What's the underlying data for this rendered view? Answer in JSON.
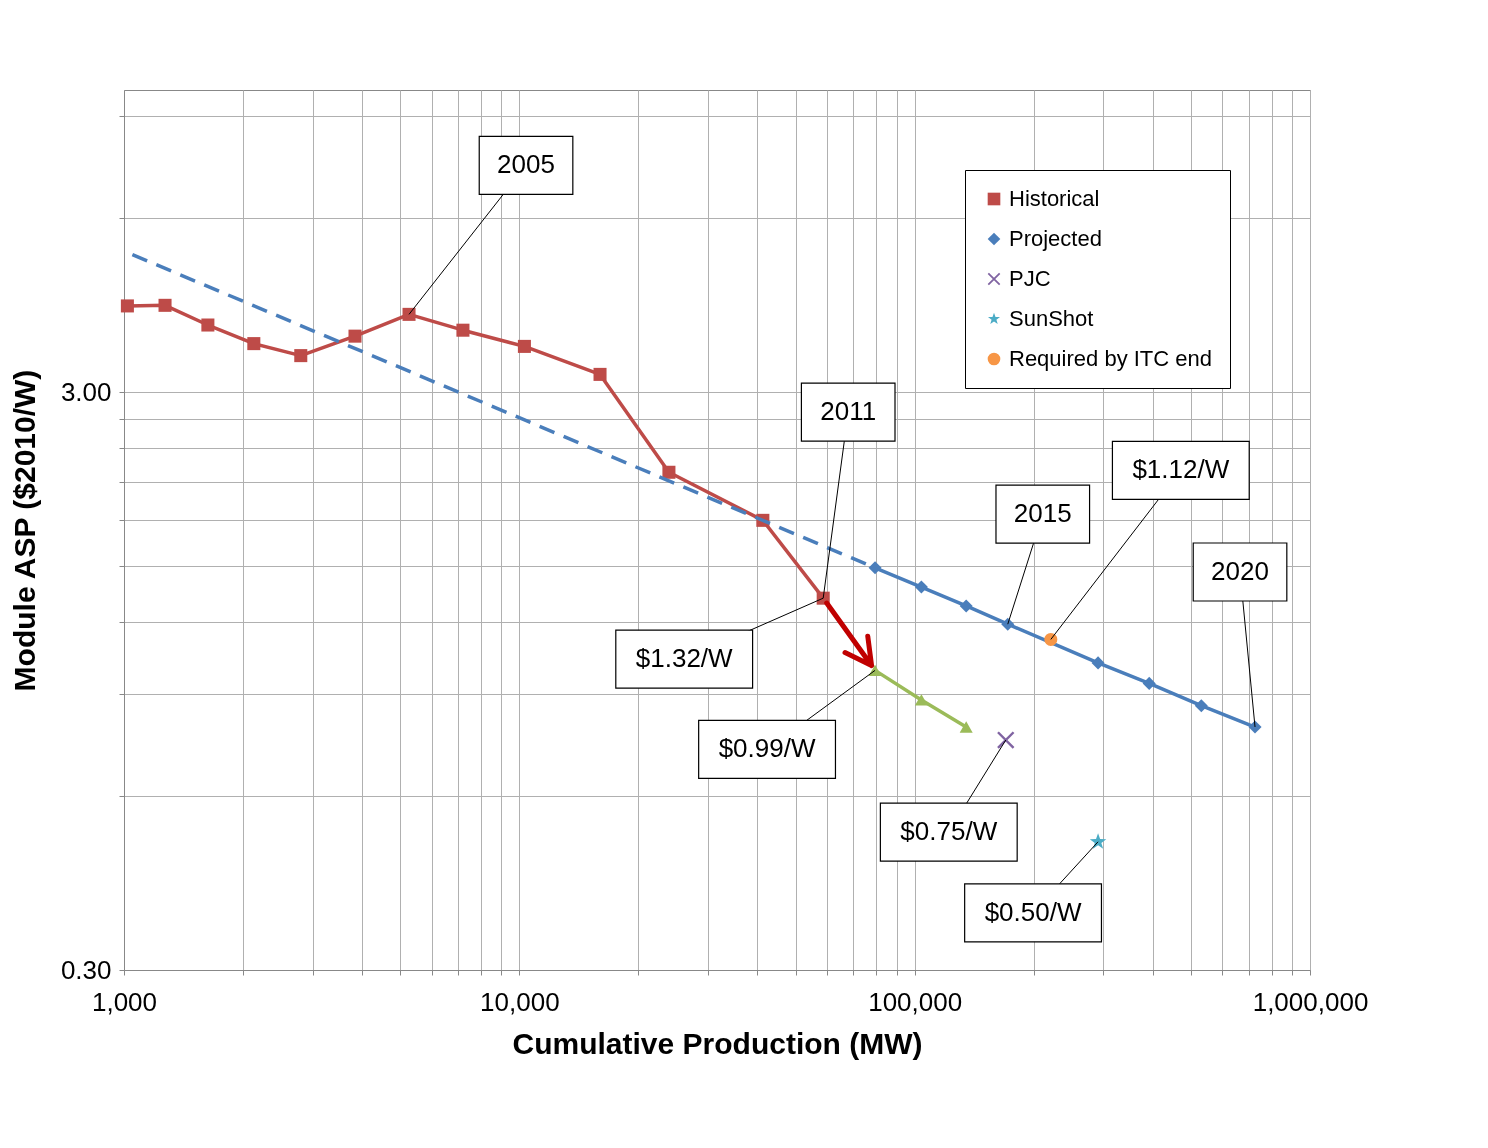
{
  "chart_data": {
    "type": "line",
    "xlabel": "Cumulative Production (MW)",
    "ylabel": "Module ASP ($2010/W)",
    "log": "xy",
    "grid": true,
    "legend": "top right",
    "xlim": [
      1000,
      1000000
    ],
    "xticks": [
      {
        "value": 1000,
        "label": "1,000"
      },
      {
        "value": 2000,
        "label": null
      },
      {
        "value": 3000,
        "label": null
      },
      {
        "value": 4000,
        "label": null
      },
      {
        "value": 5000,
        "label": null
      },
      {
        "value": 6000,
        "label": null
      },
      {
        "value": 7000,
        "label": null
      },
      {
        "value": 8000,
        "label": null
      },
      {
        "value": 9000,
        "label": null
      },
      {
        "value": 10000,
        "label": "10,000"
      },
      {
        "value": 20000,
        "label": null
      },
      {
        "value": 30000,
        "label": null
      },
      {
        "value": 40000,
        "label": null
      },
      {
        "value": 50000,
        "label": null
      },
      {
        "value": 60000,
        "label": null
      },
      {
        "value": 70000,
        "label": null
      },
      {
        "value": 80000,
        "label": null
      },
      {
        "value": 90000,
        "label": null
      },
      {
        "value": 100000,
        "label": "100,000"
      },
      {
        "value": 200000,
        "label": null
      },
      {
        "value": 300000,
        "label": null
      },
      {
        "value": 400000,
        "label": null
      },
      {
        "value": 500000,
        "label": null
      },
      {
        "value": 600000,
        "label": null
      },
      {
        "value": 700000,
        "label": null
      },
      {
        "value": 800000,
        "label": null
      },
      {
        "value": 900000,
        "label": null
      },
      {
        "value": 1000000,
        "label": "1,000,000"
      }
    ],
    "ylim": [
      0.3,
      10
    ],
    "yticks": [
      {
        "value": 0.3,
        "label": "0.30"
      },
      {
        "value": 0.6,
        "label": null
      },
      {
        "value": 0.9,
        "label": null
      },
      {
        "value": 1.2,
        "label": null
      },
      {
        "value": 1.5,
        "label": null
      },
      {
        "value": 1.8,
        "label": null
      },
      {
        "value": 2.1,
        "label": null
      },
      {
        "value": 2.4,
        "label": null
      },
      {
        "value": 2.7,
        "label": null
      },
      {
        "value": 3,
        "label": "3.00"
      },
      {
        "value": 6,
        "label": null
      },
      {
        "value": 9,
        "label": null
      }
    ],
    "series": [
      {
        "name": "Historical",
        "color": "#be4b48",
        "marker": "square",
        "x": [
          1020,
          1270,
          1630,
          2130,
          2800,
          3840,
          5260,
          7200,
          10300,
          16000,
          23900,
          41300,
          58700
        ],
        "values": [
          4.23,
          4.24,
          3.92,
          3.64,
          3.47,
          3.75,
          4.09,
          3.84,
          3.6,
          3.22,
          2.18,
          1.8,
          1.32
        ]
      },
      {
        "name": "Projected",
        "color": "#4a7ebb",
        "marker": "diamond",
        "x": [
          79400,
          104000,
          135000,
          172000,
          291000,
          392000,
          531000,
          726000
        ],
        "values": [
          1.49,
          1.38,
          1.28,
          1.19,
          1.02,
          0.94,
          0.86,
          0.79
        ]
      },
      {
        "color": "#4a7ebb",
        "marker": "none",
        "line_style": "dashed",
        "x": [
          1050,
          79400
        ],
        "values": [
          5.19,
          1.49
        ]
      },
      {
        "color": "#9bbb59",
        "marker": "triangle",
        "x": [
          79400,
          104000,
          135000
        ],
        "values": [
          0.99,
          0.88,
          0.79
        ]
      },
      {
        "name": "PJC",
        "type": "scatter",
        "color": "#8064a2",
        "marker": "cross",
        "x": [
          170000
        ],
        "values": [
          0.75
        ]
      },
      {
        "name": "SunShot",
        "type": "scatter",
        "color": "#4bacc6",
        "marker": "star",
        "x": [
          291000
        ],
        "values": [
          0.5
        ]
      },
      {
        "name": "Required by ITC end",
        "type": "scatter",
        "color": "#f79646",
        "marker": "circle",
        "x": [
          221000
        ],
        "values": [
          1.12
        ]
      }
    ],
    "annotations": [
      {
        "text": "2005",
        "x": 5260,
        "y": 4.09
      },
      {
        "text": "2011",
        "x": 58700,
        "y": 1.32
      },
      {
        "text": "2015",
        "x": 172000,
        "y": 1.19
      },
      {
        "text": "2020",
        "x": 726000,
        "y": 0.79
      },
      {
        "text": "$1.12/W",
        "x": 221000,
        "y": 1.12
      },
      {
        "text": "$1.32/W",
        "x": 58700,
        "y": 1.32
      },
      {
        "text": "$0.99/W",
        "x": 79400,
        "y": 0.99
      },
      {
        "text": "$0.75/W",
        "x": 170000,
        "y": 0.75
      },
      {
        "text": "$0.50/W",
        "x": 291000,
        "y": 0.5
      }
    ]
  }
}
